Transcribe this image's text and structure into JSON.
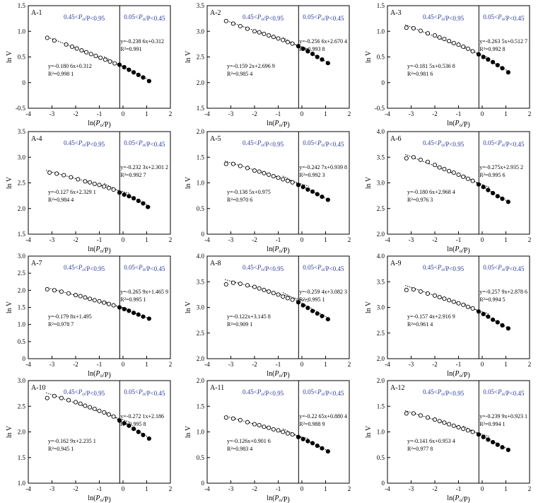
{
  "common": {
    "xlabel": "ln(P_o/P)",
    "ylabel": "ln V",
    "xlim": [
      -4,
      2
    ],
    "xticks": [
      "-4",
      "-3",
      "-2",
      "-1",
      "0",
      "1",
      "2"
    ],
    "divider_x": -0.14,
    "low_range_label": "0.45<P_o/P<0.95",
    "high_range_label": "0.05<P_o/P<0.45",
    "open_marker_color": "#000000",
    "filled_marker_color": "#000000",
    "range_label_color": "#2b3a9c"
  },
  "chart_data": [
    {
      "id": "A-1",
      "type": "scatter",
      "title": "A-1",
      "ylim": [
        -0.5,
        1.5
      ],
      "yticks": [
        "-0.5",
        "0",
        "0.5",
        "1.0",
        "1.5"
      ],
      "fit_low": {
        "slope": -0.1806,
        "intercept": 0.312,
        "eq": "y=-0.180 6x+0.312",
        "r2": "R²=0.998 1"
      },
      "fit_high": {
        "slope": -0.2386,
        "intercept": 0.312,
        "eq": "y=-0.238 6x+0.312",
        "r2": "R²=0.991"
      },
      "open_points": [
        [
          -3.2,
          0.873
        ],
        [
          -2.9,
          0.82
        ],
        [
          -2.4,
          0.743
        ],
        [
          -2.15,
          0.7
        ],
        [
          -1.95,
          0.664
        ],
        [
          -1.75,
          0.628
        ],
        [
          -1.55,
          0.592
        ],
        [
          -1.35,
          0.556
        ],
        [
          -1.15,
          0.52
        ],
        [
          -0.95,
          0.484
        ],
        [
          -0.75,
          0.447
        ],
        [
          -0.55,
          0.41
        ],
        [
          -0.35,
          0.374
        ]
      ],
      "filled_points": [
        [
          -0.15,
          0.348
        ],
        [
          0.05,
          0.3
        ],
        [
          0.25,
          0.25
        ],
        [
          0.45,
          0.2
        ],
        [
          0.65,
          0.15
        ],
        [
          0.85,
          0.1
        ],
        [
          1.1,
          0.03
        ]
      ]
    },
    {
      "id": "A-2",
      "type": "scatter",
      "title": "A-2",
      "ylim": [
        1.5,
        3.5
      ],
      "yticks": [
        "1.5",
        "2.0",
        "2.5",
        "3.0",
        "3.5"
      ],
      "fit_low": {
        "slope": -0.1592,
        "intercept": 2.6969,
        "eq": "y=-0.159 2x+2.696 9",
        "r2": "R²=0.985 4"
      },
      "fit_high": {
        "slope": -0.2566,
        "intercept": 2.6704,
        "eq": "y=-0.256 6x+2.670 4",
        "r2": "R²=0.993 8"
      },
      "open_points": [
        [
          -3.2,
          3.2
        ],
        [
          -2.9,
          3.15
        ],
        [
          -2.6,
          3.1
        ],
        [
          -2.3,
          3.05
        ],
        [
          -2.0,
          3.0
        ],
        [
          -1.8,
          2.98
        ],
        [
          -1.6,
          2.95
        ],
        [
          -1.4,
          2.92
        ],
        [
          -1.2,
          2.89
        ],
        [
          -1.0,
          2.86
        ],
        [
          -0.8,
          2.83
        ],
        [
          -0.6,
          2.79
        ],
        [
          -0.4,
          2.76
        ]
      ],
      "filled_points": [
        [
          -0.15,
          2.71
        ],
        [
          0.05,
          2.66
        ],
        [
          0.25,
          2.61
        ],
        [
          0.45,
          2.56
        ],
        [
          0.65,
          2.5
        ],
        [
          0.85,
          2.45
        ],
        [
          1.1,
          2.38
        ]
      ]
    },
    {
      "id": "A-3",
      "type": "scatter",
      "title": "A-3",
      "ylim": [
        -0.5,
        1.5
      ],
      "yticks": [
        "-0.5",
        "0",
        "0.5",
        "1.0",
        "1.5"
      ],
      "fit_low": {
        "slope": -0.1815,
        "intercept": 0.5368,
        "eq": "y=-0.181 5x+0.536 8",
        "r2": "R²=0.981 6"
      },
      "fit_high": {
        "slope": -0.2635,
        "intercept": 0.5127,
        "eq": "y=-0.263 5x+0.512 7",
        "r2": "R²=0.992 8"
      },
      "open_points": [
        [
          -3.2,
          1.07
        ],
        [
          -2.9,
          1.06
        ],
        [
          -2.6,
          1.01
        ],
        [
          -2.3,
          0.96
        ],
        [
          -2.0,
          0.92
        ],
        [
          -1.8,
          0.88
        ],
        [
          -1.6,
          0.85
        ],
        [
          -1.4,
          0.81
        ],
        [
          -1.2,
          0.77
        ],
        [
          -1.0,
          0.74
        ],
        [
          -0.8,
          0.7
        ],
        [
          -0.6,
          0.66
        ],
        [
          -0.4,
          0.61
        ]
      ],
      "filled_points": [
        [
          -0.15,
          0.55
        ],
        [
          0.05,
          0.5
        ],
        [
          0.25,
          0.45
        ],
        [
          0.45,
          0.4
        ],
        [
          0.65,
          0.34
        ],
        [
          0.85,
          0.28
        ],
        [
          1.1,
          0.2
        ]
      ]
    },
    {
      "id": "A-4",
      "type": "scatter",
      "title": "A-4",
      "ylim": [
        1.5,
        3.5
      ],
      "yticks": [
        "1.5",
        "2.0",
        "2.5",
        "3.0",
        "3.5"
      ],
      "fit_low": {
        "slope": -0.1276,
        "intercept": 2.3291,
        "eq": "y=-0.127 6x+2.329 1",
        "r2": "R²=0.984 4"
      },
      "fit_high": {
        "slope": -0.2323,
        "intercept": 2.3012,
        "eq": "y=-0.232 3x+2.301 2",
        "r2": "R²=0.992 7"
      },
      "open_points": [
        [
          -3.1,
          2.7
        ],
        [
          -2.8,
          2.68
        ],
        [
          -2.5,
          2.65
        ],
        [
          -2.2,
          2.61
        ],
        [
          -1.9,
          2.57
        ],
        [
          -1.6,
          2.53
        ],
        [
          -1.4,
          2.51
        ],
        [
          -1.2,
          2.48
        ],
        [
          -1.0,
          2.46
        ],
        [
          -0.8,
          2.43
        ],
        [
          -0.6,
          2.4
        ],
        [
          -0.4,
          2.37
        ]
      ],
      "filled_points": [
        [
          -0.15,
          2.31
        ],
        [
          0.05,
          2.27
        ],
        [
          0.25,
          2.24
        ],
        [
          0.45,
          2.2
        ],
        [
          0.65,
          2.15
        ],
        [
          0.85,
          2.1
        ],
        [
          1.05,
          2.03
        ]
      ]
    },
    {
      "id": "A-5",
      "type": "scatter",
      "title": "A-5",
      "ylim": [
        0,
        2.0
      ],
      "yticks": [
        "0",
        "0.5",
        "1.0",
        "1.5",
        "2.0"
      ],
      "fit_low": {
        "slope": -0.1385,
        "intercept": 0.975,
        "eq": "y=-0.138 5x+0.975",
        "r2": "R²=0.970 6"
      },
      "fit_high": {
        "slope": -0.2427,
        "intercept": 0.9398,
        "eq": "y=-0.242 7x+0.939 8",
        "r2": "R²=0.992 3"
      },
      "open_points": [
        [
          -3.2,
          1.37
        ],
        [
          -2.9,
          1.37
        ],
        [
          -2.6,
          1.33
        ],
        [
          -2.3,
          1.29
        ],
        [
          -2.0,
          1.24
        ],
        [
          -1.8,
          1.22
        ],
        [
          -1.6,
          1.19
        ],
        [
          -1.4,
          1.16
        ],
        [
          -1.2,
          1.13
        ],
        [
          -1.0,
          1.1
        ],
        [
          -0.8,
          1.07
        ],
        [
          -0.6,
          1.04
        ],
        [
          -0.4,
          1.01
        ]
      ],
      "filled_points": [
        [
          -0.15,
          0.96
        ],
        [
          0.05,
          0.92
        ],
        [
          0.25,
          0.87
        ],
        [
          0.45,
          0.83
        ],
        [
          0.65,
          0.78
        ],
        [
          0.85,
          0.73
        ],
        [
          1.1,
          0.67
        ]
      ]
    },
    {
      "id": "A-6",
      "type": "scatter",
      "title": "A-6",
      "ylim": [
        2.0,
        4.0
      ],
      "yticks": [
        "2.0",
        "2.5",
        "3.0",
        "3.5",
        "4.0"
      ],
      "fit_low": {
        "slope": -0.1806,
        "intercept": 2.9684,
        "eq": "y=-0.180 6x+2.968 4",
        "r2": "R²=0.976 3"
      },
      "fit_high": {
        "slope": -0.275,
        "intercept": 2.9352,
        "eq": "y=-0.275x+2.935 2",
        "r2": "R²=0.995 6"
      },
      "open_points": [
        [
          -3.2,
          3.48
        ],
        [
          -2.9,
          3.5
        ],
        [
          -2.6,
          3.45
        ],
        [
          -2.3,
          3.41
        ],
        [
          -2.0,
          3.35
        ],
        [
          -1.8,
          3.3
        ],
        [
          -1.6,
          3.27
        ],
        [
          -1.4,
          3.23
        ],
        [
          -1.2,
          3.2
        ],
        [
          -1.0,
          3.16
        ],
        [
          -0.8,
          3.12
        ],
        [
          -0.6,
          3.08
        ],
        [
          -0.4,
          3.04
        ]
      ],
      "filled_points": [
        [
          -0.15,
          2.97
        ],
        [
          0.05,
          2.92
        ],
        [
          0.25,
          2.86
        ],
        [
          0.45,
          2.8
        ],
        [
          0.65,
          2.74
        ],
        [
          0.85,
          2.69
        ],
        [
          1.1,
          2.63
        ]
      ]
    },
    {
      "id": "A-7",
      "type": "scatter",
      "title": "A-7",
      "ylim": [
        0,
        3.0
      ],
      "yticks": [
        "0",
        "0.5",
        "1.0",
        "1.5",
        "2.0",
        "2.5",
        "3.0"
      ],
      "fit_low": {
        "slope": -0.1798,
        "intercept": 1.495,
        "eq": "y=-0.179 8x+1.495",
        "r2": "R²=0.978 7"
      },
      "fit_high": {
        "slope": -0.2659,
        "intercept": 1.4659,
        "eq": "y=-0.265 9x+1.465 9",
        "r2": "R²=0.995 1"
      },
      "open_points": [
        [
          -3.2,
          2.03
        ],
        [
          -2.9,
          2.0
        ],
        [
          -2.6,
          1.96
        ],
        [
          -2.3,
          1.91
        ],
        [
          -2.0,
          1.86
        ],
        [
          -1.8,
          1.83
        ],
        [
          -1.6,
          1.79
        ],
        [
          -1.4,
          1.75
        ],
        [
          -1.2,
          1.71
        ],
        [
          -1.0,
          1.68
        ],
        [
          -0.8,
          1.64
        ],
        [
          -0.6,
          1.6
        ],
        [
          -0.4,
          1.56
        ]
      ],
      "filled_points": [
        [
          -0.15,
          1.5
        ],
        [
          0.05,
          1.45
        ],
        [
          0.25,
          1.4
        ],
        [
          0.45,
          1.34
        ],
        [
          0.65,
          1.29
        ],
        [
          0.85,
          1.23
        ],
        [
          1.1,
          1.17
        ]
      ]
    },
    {
      "id": "A-8",
      "type": "scatter",
      "title": "A-8",
      "ylim": [
        2.0,
        4.0
      ],
      "yticks": [
        "2.0",
        "2.5",
        "3.0",
        "3.5",
        "4.0"
      ],
      "fit_low": {
        "slope": -0.122,
        "intercept": 3.1458,
        "eq": "y=-0.122x+3.145 8",
        "r2": "R²=0.909 1"
      },
      "fit_high": {
        "slope": -0.2594,
        "intercept": 3.0823,
        "eq": "y=-0.259 4x+3.082 3",
        "r2": "R²=0.995 1"
      },
      "open_points": [
        [
          -3.2,
          3.45
        ],
        [
          -2.9,
          3.48
        ],
        [
          -2.6,
          3.46
        ],
        [
          -2.3,
          3.43
        ],
        [
          -2.0,
          3.4
        ],
        [
          -1.8,
          3.37
        ],
        [
          -1.6,
          3.34
        ],
        [
          -1.4,
          3.31
        ],
        [
          -1.2,
          3.28
        ],
        [
          -1.0,
          3.25
        ],
        [
          -0.8,
          3.21
        ],
        [
          -0.6,
          3.18
        ],
        [
          -0.4,
          3.15
        ]
      ],
      "filled_points": [
        [
          -0.15,
          3.1
        ],
        [
          0.05,
          3.04
        ],
        [
          0.25,
          2.99
        ],
        [
          0.45,
          2.93
        ],
        [
          0.65,
          2.88
        ],
        [
          0.85,
          2.83
        ],
        [
          1.1,
          2.77
        ]
      ]
    },
    {
      "id": "A-9",
      "type": "scatter",
      "title": "A-9",
      "ylim": [
        2.0,
        4.0
      ],
      "yticks": [
        "2.0",
        "2.5",
        "3.0",
        "3.5",
        "4.0"
      ],
      "fit_low": {
        "slope": -0.1574,
        "intercept": 2.9169,
        "eq": "y=-0.157 4x+2.916 9",
        "r2": "R²=0.961 4"
      },
      "fit_high": {
        "slope": -0.2579,
        "intercept": 2.8786,
        "eq": "y=-0.257 9x+2.878 6",
        "r2": "R²=0.994 5"
      },
      "open_points": [
        [
          -3.2,
          3.34
        ],
        [
          -2.9,
          3.35
        ],
        [
          -2.6,
          3.31
        ],
        [
          -2.3,
          3.27
        ],
        [
          -2.0,
          3.23
        ],
        [
          -1.8,
          3.2
        ],
        [
          -1.6,
          3.17
        ],
        [
          -1.4,
          3.14
        ],
        [
          -1.2,
          3.11
        ],
        [
          -1.0,
          3.08
        ],
        [
          -0.8,
          3.05
        ],
        [
          -0.6,
          3.01
        ],
        [
          -0.4,
          2.98
        ]
      ],
      "filled_points": [
        [
          -0.15,
          2.92
        ],
        [
          0.05,
          2.87
        ],
        [
          0.25,
          2.82
        ],
        [
          0.45,
          2.76
        ],
        [
          0.65,
          2.71
        ],
        [
          0.85,
          2.65
        ],
        [
          1.1,
          2.59
        ]
      ]
    },
    {
      "id": "A-10",
      "type": "scatter",
      "title": "A-10",
      "ylim": [
        1.0,
        3.0
      ],
      "yticks": [
        "1.0",
        "1.5",
        "2.0",
        "2.5",
        "3.0"
      ],
      "fit_low": {
        "slope": -0.1629,
        "intercept": 2.2351,
        "eq": "y=-0.162 9x+2.235 1",
        "r2": "R²=0.945 1"
      },
      "fit_high": {
        "slope": -0.2721,
        "intercept": 2.186,
        "eq": "y=-0.272 1x+2.186",
        "r2": "R²=0.995 8"
      },
      "open_points": [
        [
          -3.2,
          2.66
        ],
        [
          -2.9,
          2.7
        ],
        [
          -2.6,
          2.66
        ],
        [
          -2.3,
          2.62
        ],
        [
          -2.0,
          2.58
        ],
        [
          -1.8,
          2.55
        ],
        [
          -1.6,
          2.51
        ],
        [
          -1.4,
          2.48
        ],
        [
          -1.2,
          2.45
        ],
        [
          -1.0,
          2.41
        ],
        [
          -0.8,
          2.38
        ],
        [
          -0.6,
          2.34
        ],
        [
          -0.4,
          2.3
        ]
      ],
      "filled_points": [
        [
          -0.15,
          2.22
        ],
        [
          0.05,
          2.17
        ],
        [
          0.25,
          2.12
        ],
        [
          0.45,
          2.06
        ],
        [
          0.65,
          2.0
        ],
        [
          0.85,
          1.94
        ],
        [
          1.1,
          1.87
        ]
      ]
    },
    {
      "id": "A-11",
      "type": "scatter",
      "title": "A-11",
      "ylim": [
        0,
        2.0
      ],
      "yticks": [
        "0",
        "0.5",
        "1.0",
        "1.5",
        "2.0"
      ],
      "fit_low": {
        "slope": -0.126,
        "intercept": 0.9016,
        "eq": "y=-0.126x+0.901 6",
        "r2": "R²=0.983 4"
      },
      "fit_high": {
        "slope": -0.2265,
        "intercept": 0.8804,
        "eq": "y=-0.22 65x+0.880 4",
        "r2": "R²=0.988 9"
      },
      "open_points": [
        [
          -3.2,
          1.28
        ],
        [
          -2.9,
          1.26
        ],
        [
          -2.6,
          1.23
        ],
        [
          -2.3,
          1.19
        ],
        [
          -2.0,
          1.15
        ],
        [
          -1.8,
          1.13
        ],
        [
          -1.6,
          1.1
        ],
        [
          -1.4,
          1.08
        ],
        [
          -1.2,
          1.05
        ],
        [
          -1.0,
          1.03
        ],
        [
          -0.8,
          1.0
        ],
        [
          -0.6,
          0.97
        ],
        [
          -0.4,
          0.95
        ]
      ],
      "filled_points": [
        [
          -0.15,
          0.9
        ],
        [
          0.05,
          0.86
        ],
        [
          0.25,
          0.82
        ],
        [
          0.45,
          0.78
        ],
        [
          0.65,
          0.73
        ],
        [
          0.85,
          0.68
        ],
        [
          1.1,
          0.62
        ]
      ]
    },
    {
      "id": "A-12",
      "type": "scatter",
      "title": "A-12",
      "ylim": [
        0,
        2.0
      ],
      "yticks": [
        "0",
        "0.5",
        "1.0",
        "1.5",
        "2.0"
      ],
      "fit_low": {
        "slope": -0.1416,
        "intercept": 0.9534,
        "eq": "y=-0.141 6x+0.953 4",
        "r2": "R²=0.977 8"
      },
      "fit_high": {
        "slope": -0.2399,
        "intercept": 0.9231,
        "eq": "y=-0.239 9x+0.923 1",
        "r2": "R²=0.994 1"
      },
      "open_points": [
        [
          -3.2,
          1.36
        ],
        [
          -2.9,
          1.36
        ],
        [
          -2.6,
          1.32
        ],
        [
          -2.3,
          1.28
        ],
        [
          -2.0,
          1.24
        ],
        [
          -1.8,
          1.21
        ],
        [
          -1.6,
          1.18
        ],
        [
          -1.4,
          1.15
        ],
        [
          -1.2,
          1.12
        ],
        [
          -1.0,
          1.09
        ],
        [
          -0.8,
          1.06
        ],
        [
          -0.6,
          1.03
        ],
        [
          -0.4,
          1.0
        ]
      ],
      "filled_points": [
        [
          -0.15,
          0.95
        ],
        [
          0.05,
          0.9
        ],
        [
          0.25,
          0.85
        ],
        [
          0.45,
          0.8
        ],
        [
          0.65,
          0.75
        ],
        [
          0.85,
          0.7
        ],
        [
          1.1,
          0.65
        ]
      ]
    }
  ]
}
